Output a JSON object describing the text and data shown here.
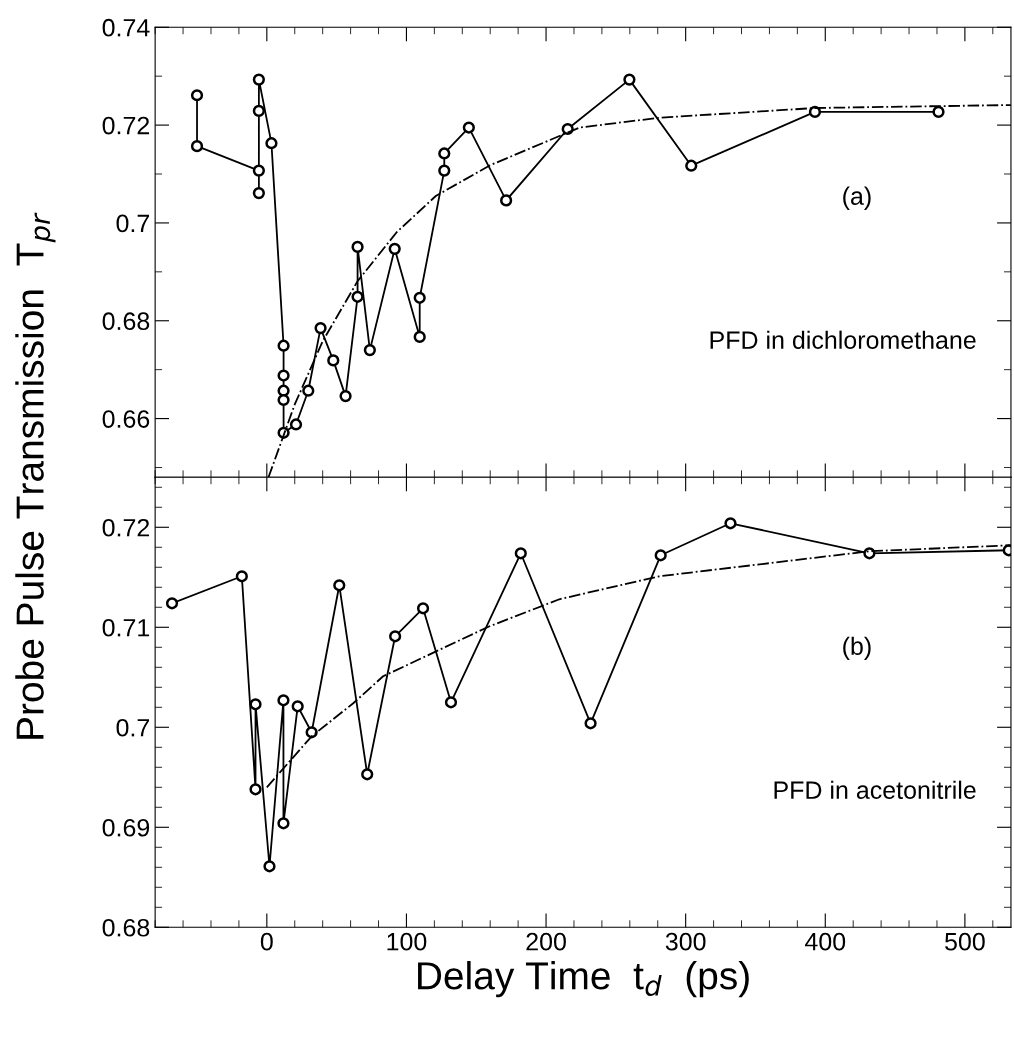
{
  "chart_data": [
    {
      "type": "line",
      "ylabel": "Probe Pulse Transmission  T$_{pr}$",
      "xlim": [
        -80,
        533
      ],
      "xticks": [
        0,
        100,
        200,
        300,
        400,
        500
      ],
      "ylim": [
        0.648,
        0.74
      ],
      "yticks": [
        0.66,
        0.68,
        0.7,
        0.72,
        0.74
      ],
      "tick_labels": "y",
      "grid": false,
      "legend": false,
      "annotations": [
        "(a)",
        "PFD in dichloromethane"
      ],
      "series": [
        {
          "color": "#000000",
          "marker": "circle",
          "line_style": "solid",
          "x": [
            -50,
            -50,
            -5.7,
            -5.7,
            -5.7,
            -5.7,
            3.3,
            12,
            12,
            12,
            12,
            12,
            20.9,
            29.7,
            38.5,
            47.6,
            56.4,
            65,
            65,
            73.8,
            91.6,
            109.5,
            109.5,
            127.1,
            127.1,
            144.7,
            171.4,
            215.5,
            259.7,
            304,
            392.6,
            481.1
          ],
          "values": [
            0.7261,
            0.7157,
            0.7107,
            0.7061,
            0.7229,
            0.7293,
            0.7163,
            0.6749,
            0.6688,
            0.6657,
            0.6638,
            0.6571,
            0.6588,
            0.6657,
            0.6785,
            0.6719,
            0.6646,
            0.6849,
            0.6951,
            0.674,
            0.6947,
            0.6767,
            0.6847,
            0.7107,
            0.7142,
            0.7195,
            0.7046,
            0.7192,
            0.7293,
            0.7117,
            0.7227,
            0.7227
          ]
        },
        {
          "color": "#000000",
          "marker": "none",
          "line_style": "dashdot",
          "x": [
            1.2,
            20,
            40,
            65,
            93,
            121,
            160,
            224,
            281,
            393,
            533
          ],
          "values": [
            0.648,
            0.6629,
            0.6758,
            0.6881,
            0.6981,
            0.7055,
            0.7118,
            0.7195,
            0.7215,
            0.7235,
            0.7241
          ]
        }
      ]
    },
    {
      "type": "line",
      "xlabel": "Delay Time  t$_{d}$  (ps)",
      "xlim": [
        -80,
        533
      ],
      "xticks": [
        0,
        100,
        200,
        300,
        400,
        500
      ],
      "ylim": [
        0.68,
        0.725
      ],
      "yticks": [
        0.68,
        0.69,
        0.7,
        0.71,
        0.72
      ],
      "grid": false,
      "legend": false,
      "annotations": [
        "(b)",
        "PFD in acetonitrile"
      ],
      "series": [
        {
          "color": "#000000",
          "marker": "circle",
          "line_style": "solid",
          "x": [
            -67.9,
            -17.9,
            -8.1,
            -8.1,
            1.9,
            11.9,
            11.9,
            22.1,
            32.1,
            51.9,
            71.9,
            91.9,
            111.9,
            131.9,
            181.9,
            231.9,
            282.1,
            332.1,
            431.6,
            531.4
          ],
          "values": [
            0.7124,
            0.7151,
            0.6938,
            0.7023,
            0.6861,
            0.7027,
            0.6904,
            0.7021,
            0.6995,
            0.7142,
            0.6953,
            0.7091,
            0.7119,
            0.7025,
            0.7174,
            0.7004,
            0.7172,
            0.7204,
            0.7174,
            0.7177
          ]
        },
        {
          "color": "#000000",
          "marker": "none",
          "line_style": "dashdot",
          "x": [
            0,
            32.1,
            61.9,
            83.3,
            159.5,
            209.5,
            281,
            431.6,
            533
          ],
          "values": [
            0.694,
            0.6991,
            0.7024,
            0.7051,
            0.7101,
            0.7128,
            0.7151,
            0.7176,
            0.7182
          ]
        }
      ]
    }
  ]
}
